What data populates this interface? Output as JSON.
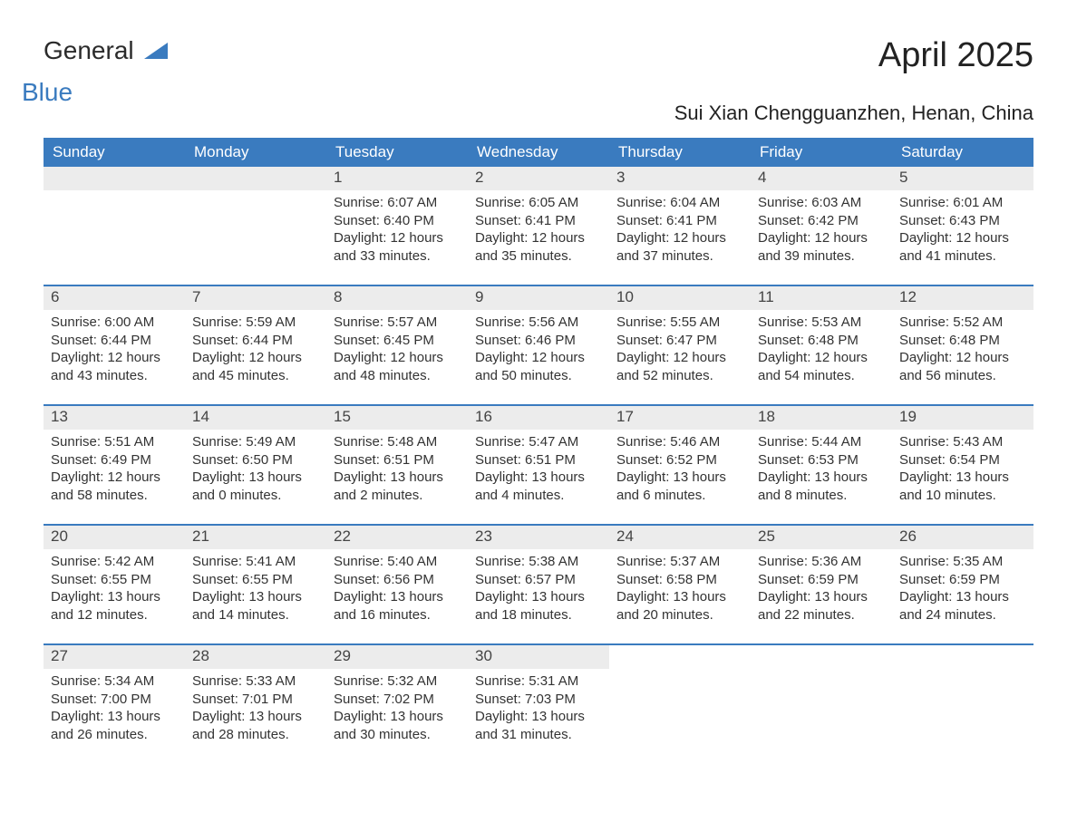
{
  "logo": {
    "word1": "General",
    "word2": "Blue"
  },
  "title": "April 2025",
  "subtitle": "Sui Xian Chengguanzhen, Henan, China",
  "colors": {
    "header_bg": "#3a7bbf",
    "header_text": "#ffffff",
    "numbar_bg": "#ececec",
    "week_border": "#3a7bbf",
    "body_text": "#333333",
    "page_bg": "#ffffff"
  },
  "day_headers": [
    "Sunday",
    "Monday",
    "Tuesday",
    "Wednesday",
    "Thursday",
    "Friday",
    "Saturday"
  ],
  "weeks": [
    [
      {
        "num": "",
        "sunrise": "",
        "sunset": "",
        "daylight": ""
      },
      {
        "num": "",
        "sunrise": "",
        "sunset": "",
        "daylight": ""
      },
      {
        "num": "1",
        "sunrise": "Sunrise: 6:07 AM",
        "sunset": "Sunset: 6:40 PM",
        "daylight": "Daylight: 12 hours and 33 minutes."
      },
      {
        "num": "2",
        "sunrise": "Sunrise: 6:05 AM",
        "sunset": "Sunset: 6:41 PM",
        "daylight": "Daylight: 12 hours and 35 minutes."
      },
      {
        "num": "3",
        "sunrise": "Sunrise: 6:04 AM",
        "sunset": "Sunset: 6:41 PM",
        "daylight": "Daylight: 12 hours and 37 minutes."
      },
      {
        "num": "4",
        "sunrise": "Sunrise: 6:03 AM",
        "sunset": "Sunset: 6:42 PM",
        "daylight": "Daylight: 12 hours and 39 minutes."
      },
      {
        "num": "5",
        "sunrise": "Sunrise: 6:01 AM",
        "sunset": "Sunset: 6:43 PM",
        "daylight": "Daylight: 12 hours and 41 minutes."
      }
    ],
    [
      {
        "num": "6",
        "sunrise": "Sunrise: 6:00 AM",
        "sunset": "Sunset: 6:44 PM",
        "daylight": "Daylight: 12 hours and 43 minutes."
      },
      {
        "num": "7",
        "sunrise": "Sunrise: 5:59 AM",
        "sunset": "Sunset: 6:44 PM",
        "daylight": "Daylight: 12 hours and 45 minutes."
      },
      {
        "num": "8",
        "sunrise": "Sunrise: 5:57 AM",
        "sunset": "Sunset: 6:45 PM",
        "daylight": "Daylight: 12 hours and 48 minutes."
      },
      {
        "num": "9",
        "sunrise": "Sunrise: 5:56 AM",
        "sunset": "Sunset: 6:46 PM",
        "daylight": "Daylight: 12 hours and 50 minutes."
      },
      {
        "num": "10",
        "sunrise": "Sunrise: 5:55 AM",
        "sunset": "Sunset: 6:47 PM",
        "daylight": "Daylight: 12 hours and 52 minutes."
      },
      {
        "num": "11",
        "sunrise": "Sunrise: 5:53 AM",
        "sunset": "Sunset: 6:48 PM",
        "daylight": "Daylight: 12 hours and 54 minutes."
      },
      {
        "num": "12",
        "sunrise": "Sunrise: 5:52 AM",
        "sunset": "Sunset: 6:48 PM",
        "daylight": "Daylight: 12 hours and 56 minutes."
      }
    ],
    [
      {
        "num": "13",
        "sunrise": "Sunrise: 5:51 AM",
        "sunset": "Sunset: 6:49 PM",
        "daylight": "Daylight: 12 hours and 58 minutes."
      },
      {
        "num": "14",
        "sunrise": "Sunrise: 5:49 AM",
        "sunset": "Sunset: 6:50 PM",
        "daylight": "Daylight: 13 hours and 0 minutes."
      },
      {
        "num": "15",
        "sunrise": "Sunrise: 5:48 AM",
        "sunset": "Sunset: 6:51 PM",
        "daylight": "Daylight: 13 hours and 2 minutes."
      },
      {
        "num": "16",
        "sunrise": "Sunrise: 5:47 AM",
        "sunset": "Sunset: 6:51 PM",
        "daylight": "Daylight: 13 hours and 4 minutes."
      },
      {
        "num": "17",
        "sunrise": "Sunrise: 5:46 AM",
        "sunset": "Sunset: 6:52 PM",
        "daylight": "Daylight: 13 hours and 6 minutes."
      },
      {
        "num": "18",
        "sunrise": "Sunrise: 5:44 AM",
        "sunset": "Sunset: 6:53 PM",
        "daylight": "Daylight: 13 hours and 8 minutes."
      },
      {
        "num": "19",
        "sunrise": "Sunrise: 5:43 AM",
        "sunset": "Sunset: 6:54 PM",
        "daylight": "Daylight: 13 hours and 10 minutes."
      }
    ],
    [
      {
        "num": "20",
        "sunrise": "Sunrise: 5:42 AM",
        "sunset": "Sunset: 6:55 PM",
        "daylight": "Daylight: 13 hours and 12 minutes."
      },
      {
        "num": "21",
        "sunrise": "Sunrise: 5:41 AM",
        "sunset": "Sunset: 6:55 PM",
        "daylight": "Daylight: 13 hours and 14 minutes."
      },
      {
        "num": "22",
        "sunrise": "Sunrise: 5:40 AM",
        "sunset": "Sunset: 6:56 PM",
        "daylight": "Daylight: 13 hours and 16 minutes."
      },
      {
        "num": "23",
        "sunrise": "Sunrise: 5:38 AM",
        "sunset": "Sunset: 6:57 PM",
        "daylight": "Daylight: 13 hours and 18 minutes."
      },
      {
        "num": "24",
        "sunrise": "Sunrise: 5:37 AM",
        "sunset": "Sunset: 6:58 PM",
        "daylight": "Daylight: 13 hours and 20 minutes."
      },
      {
        "num": "25",
        "sunrise": "Sunrise: 5:36 AM",
        "sunset": "Sunset: 6:59 PM",
        "daylight": "Daylight: 13 hours and 22 minutes."
      },
      {
        "num": "26",
        "sunrise": "Sunrise: 5:35 AM",
        "sunset": "Sunset: 6:59 PM",
        "daylight": "Daylight: 13 hours and 24 minutes."
      }
    ],
    [
      {
        "num": "27",
        "sunrise": "Sunrise: 5:34 AM",
        "sunset": "Sunset: 7:00 PM",
        "daylight": "Daylight: 13 hours and 26 minutes."
      },
      {
        "num": "28",
        "sunrise": "Sunrise: 5:33 AM",
        "sunset": "Sunset: 7:01 PM",
        "daylight": "Daylight: 13 hours and 28 minutes."
      },
      {
        "num": "29",
        "sunrise": "Sunrise: 5:32 AM",
        "sunset": "Sunset: 7:02 PM",
        "daylight": "Daylight: 13 hours and 30 minutes."
      },
      {
        "num": "30",
        "sunrise": "Sunrise: 5:31 AM",
        "sunset": "Sunset: 7:03 PM",
        "daylight": "Daylight: 13 hours and 31 minutes."
      },
      {
        "num": "",
        "sunrise": "",
        "sunset": "",
        "daylight": ""
      },
      {
        "num": "",
        "sunrise": "",
        "sunset": "",
        "daylight": ""
      },
      {
        "num": "",
        "sunrise": "",
        "sunset": "",
        "daylight": ""
      }
    ]
  ]
}
